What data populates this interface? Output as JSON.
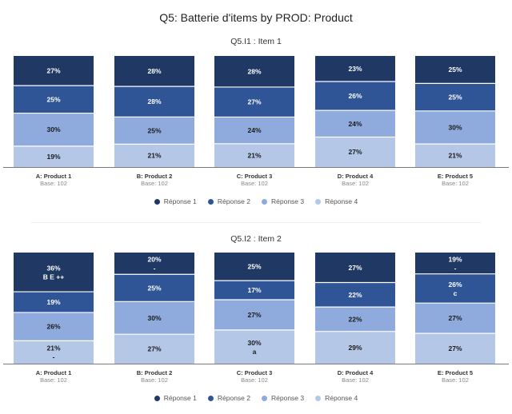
{
  "title": "Q5: Batterie d'items by PROD: Product",
  "colors": [
    "#1f3864",
    "#2f5597",
    "#8faadc",
    "#b4c7e7"
  ],
  "chart_data": [
    {
      "type": "bar",
      "stacked": true,
      "percent_stacked": true,
      "title": "Q5.I1 : Item 1",
      "categories": [
        "A: Product 1",
        "B: Product 2",
        "C: Product 3",
        "D: Product 4",
        "E: Product 5"
      ],
      "bases": [
        "Base: 102",
        "Base: 102",
        "Base: 102",
        "Base: 102",
        "Base: 102"
      ],
      "series": [
        {
          "name": "Réponse 1",
          "values": [
            27,
            28,
            28,
            23,
            25
          ],
          "labels": [
            "27%",
            "28%",
            "28%",
            "23%",
            "25%"
          ],
          "sig": [
            "",
            "",
            "",
            "",
            ""
          ]
        },
        {
          "name": "Réponse 2",
          "values": [
            25,
            28,
            27,
            26,
            25
          ],
          "labels": [
            "25%",
            "28%",
            "27%",
            "26%",
            "25%"
          ],
          "sig": [
            "",
            "",
            "",
            "",
            ""
          ]
        },
        {
          "name": "Réponse 3",
          "values": [
            30,
            25,
            24,
            24,
            30
          ],
          "labels": [
            "30%",
            "25%",
            "24%",
            "24%",
            "30%"
          ],
          "sig": [
            "",
            "",
            "",
            "",
            ""
          ]
        },
        {
          "name": "Réponse 4",
          "values": [
            19,
            21,
            21,
            27,
            21
          ],
          "labels": [
            "19%",
            "21%",
            "21%",
            "27%",
            "21%"
          ],
          "sig": [
            "",
            "",
            "",
            "",
            ""
          ]
        }
      ],
      "legend": [
        "Réponse 1",
        "Réponse 2",
        "Réponse 3",
        "Réponse 4"
      ],
      "legend_position": "bottom"
    },
    {
      "type": "bar",
      "stacked": true,
      "percent_stacked": true,
      "title": "Q5.I2 : Item 2",
      "categories": [
        "A: Product 1",
        "B: Product 2",
        "C: Product 3",
        "D: Product 4",
        "E: Product 5"
      ],
      "bases": [
        "Base: 102",
        "Base: 102",
        "Base: 102",
        "Base: 102",
        "Base: 102"
      ],
      "series": [
        {
          "name": "Réponse 1",
          "values": [
            36,
            20,
            25,
            27,
            19
          ],
          "labels": [
            "36%",
            "20%",
            "25%",
            "27%",
            "19%"
          ],
          "sig": [
            "B E ++",
            "-",
            "",
            "",
            "-"
          ]
        },
        {
          "name": "Réponse 2",
          "values": [
            19,
            25,
            17,
            22,
            26
          ],
          "labels": [
            "19%",
            "25%",
            "17%",
            "22%",
            "26%"
          ],
          "sig": [
            "",
            "",
            "",
            "",
            "c"
          ]
        },
        {
          "name": "Réponse 3",
          "values": [
            26,
            30,
            27,
            22,
            27
          ],
          "labels": [
            "26%",
            "30%",
            "27%",
            "22%",
            "27%"
          ],
          "sig": [
            "",
            "",
            "",
            "",
            ""
          ]
        },
        {
          "name": "Réponse 4",
          "values": [
            21,
            27,
            30,
            29,
            27
          ],
          "labels": [
            "21%",
            "27%",
            "30%",
            "29%",
            "27%"
          ],
          "sig": [
            "-",
            "",
            "a",
            "",
            ""
          ]
        }
      ],
      "legend": [
        "Réponse 1",
        "Réponse 2",
        "Réponse 3",
        "Réponse 4"
      ],
      "legend_position": "bottom"
    }
  ]
}
